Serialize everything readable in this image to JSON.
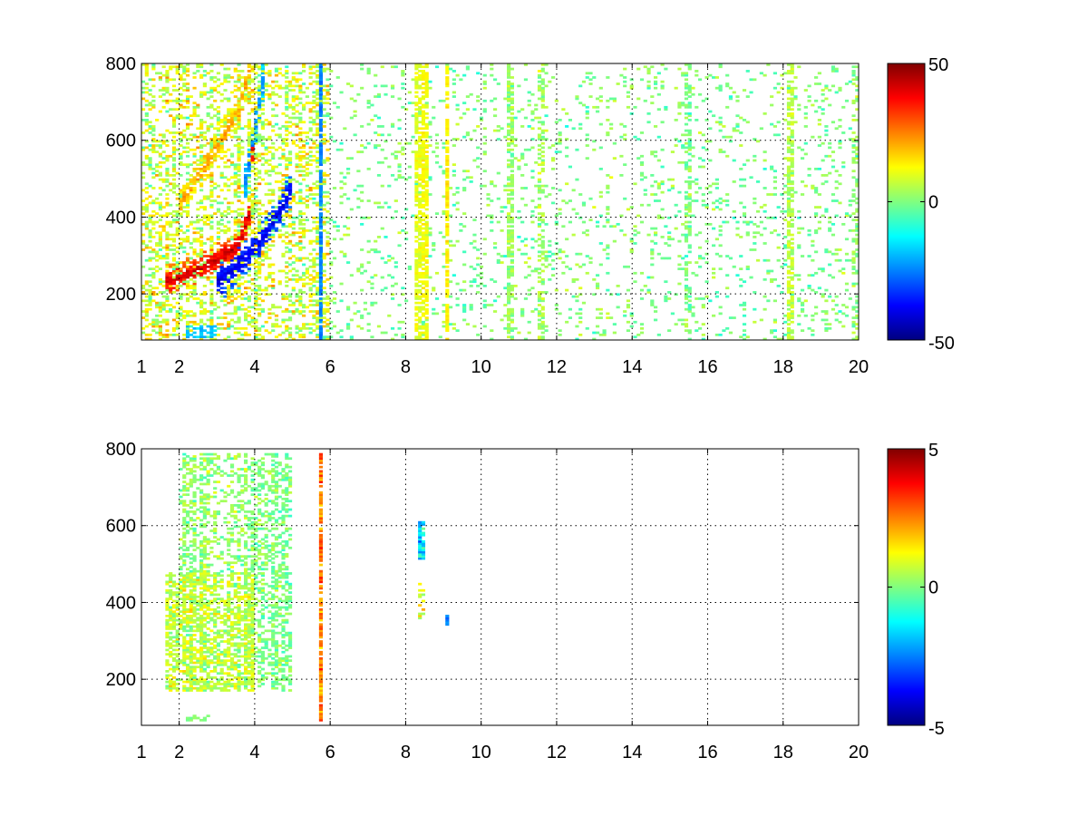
{
  "chart_data": [
    {
      "type": "heatmap",
      "title": "",
      "xlabel": "",
      "ylabel": "",
      "xlim": [
        1,
        20
      ],
      "ylim": [
        80,
        800
      ],
      "grid": true,
      "grid_style": "dotted",
      "colormap": "jet",
      "x_ticks": [
        {
          "value": 1,
          "label": "1"
        },
        {
          "value": 2,
          "label": "2"
        },
        {
          "value": 4,
          "label": "4"
        },
        {
          "value": 6,
          "label": "6"
        },
        {
          "value": 8,
          "label": "8"
        },
        {
          "value": 10,
          "label": "10"
        },
        {
          "value": 12,
          "label": "12"
        },
        {
          "value": 14,
          "label": "14"
        },
        {
          "value": 16,
          "label": "16"
        },
        {
          "value": 18,
          "label": "18"
        },
        {
          "value": 20,
          "label": "20"
        }
      ],
      "y_ticks": [
        {
          "value": 200,
          "label": "200"
        },
        {
          "value": 400,
          "label": "400"
        },
        {
          "value": 600,
          "label": "600"
        },
        {
          "value": 800,
          "label": "800"
        }
      ],
      "colorbar": {
        "range": [
          -50,
          50
        ],
        "ticks": [
          {
            "value": 50,
            "label": "50"
          },
          {
            "value": 0,
            "label": "0"
          },
          {
            "value": -50,
            "label": "-50"
          }
        ]
      },
      "features": [
        {
          "kind": "ridge",
          "points": [
            [
              1.6,
              230
            ],
            [
              2.4,
              260
            ],
            [
              3.0,
              290
            ],
            [
              3.6,
              330
            ],
            [
              3.9,
              420
            ],
            [
              4.0,
              800
            ]
          ],
          "value": 42,
          "width": 0.28,
          "height": 45,
          "density": 0.95
        },
        {
          "kind": "ridge",
          "points": [
            [
              2.0,
              430
            ],
            [
              2.6,
              520
            ],
            [
              3.1,
              600
            ],
            [
              3.6,
              680
            ],
            [
              3.9,
              800
            ]
          ],
          "value": 22,
          "width": 0.25,
          "height": 45,
          "density": 0.85
        },
        {
          "kind": "ridge",
          "points": [
            [
              3.0,
              230
            ],
            [
              3.5,
              270
            ],
            [
              4.1,
              330
            ],
            [
              4.7,
              420
            ],
            [
              5.0,
              480
            ]
          ],
          "value": -40,
          "width": 0.35,
          "height": 60,
          "density": 0.9
        },
        {
          "kind": "ridge",
          "points": [
            [
              3.7,
              460
            ],
            [
              4.0,
              620
            ],
            [
              4.3,
              800
            ]
          ],
          "value": -25,
          "width": 0.35,
          "height": 60,
          "density": 0.85
        },
        {
          "kind": "band",
          "x": [
            1.0,
            6.0
          ],
          "y": [
            80,
            800
          ],
          "value": 8,
          "spread": 20,
          "density": 0.42
        },
        {
          "kind": "band",
          "x": [
            2.2,
            3.0
          ],
          "y": [
            85,
            120
          ],
          "value": -18,
          "spread": 6,
          "density": 0.8
        },
        {
          "kind": "band",
          "x": [
            6.0,
            20.0
          ],
          "y": [
            80,
            800
          ],
          "value": 0,
          "spread": 12,
          "density": 0.1
        },
        {
          "kind": "column",
          "x": 5.75,
          "y": [
            80,
            800
          ],
          "value": -25,
          "spread": 6,
          "density": 0.9
        },
        {
          "kind": "column",
          "x": 8.3,
          "y": [
            80,
            800
          ],
          "value": 10,
          "spread": 6,
          "density": 0.7
        },
        {
          "kind": "column",
          "x": 8.5,
          "y": [
            80,
            800
          ],
          "value": 12,
          "spread": 6,
          "density": 0.75
        },
        {
          "kind": "column",
          "x": 9.1,
          "y": [
            80,
            800
          ],
          "value": 14,
          "spread": 5,
          "density": 0.75
        },
        {
          "kind": "column",
          "x": 10.8,
          "y": [
            80,
            800
          ],
          "value": 3,
          "spread": 10,
          "density": 0.6
        },
        {
          "kind": "column",
          "x": 11.6,
          "y": [
            80,
            800
          ],
          "value": 4,
          "spread": 10,
          "density": 0.45
        },
        {
          "kind": "column",
          "x": 15.5,
          "y": [
            80,
            800
          ],
          "value": 0,
          "spread": 10,
          "density": 0.45
        },
        {
          "kind": "column",
          "x": 18.2,
          "y": [
            80,
            800
          ],
          "value": 6,
          "spread": 8,
          "density": 0.65
        },
        {
          "kind": "column",
          "x": 19.9,
          "y": [
            80,
            800
          ],
          "value": 2,
          "spread": 10,
          "density": 0.35
        }
      ]
    },
    {
      "type": "heatmap",
      "title": "",
      "xlabel": "",
      "ylabel": "",
      "xlim": [
        1,
        20
      ],
      "ylim": [
        80,
        800
      ],
      "grid": true,
      "grid_style": "dotted",
      "colormap": "jet",
      "x_ticks": [
        {
          "value": 1,
          "label": "1"
        },
        {
          "value": 2,
          "label": "2"
        },
        {
          "value": 4,
          "label": "4"
        },
        {
          "value": 6,
          "label": "6"
        },
        {
          "value": 8,
          "label": "8"
        },
        {
          "value": 10,
          "label": "10"
        },
        {
          "value": 12,
          "label": "12"
        },
        {
          "value": 14,
          "label": "14"
        },
        {
          "value": 16,
          "label": "16"
        },
        {
          "value": 18,
          "label": "18"
        },
        {
          "value": 20,
          "label": "20"
        }
      ],
      "y_ticks": [
        {
          "value": 200,
          "label": "200"
        },
        {
          "value": 400,
          "label": "400"
        },
        {
          "value": 600,
          "label": "600"
        },
        {
          "value": 800,
          "label": "800"
        }
      ],
      "colorbar": {
        "range": [
          -5,
          5
        ],
        "ticks": [
          {
            "value": 5,
            "label": "5"
          },
          {
            "value": 0,
            "label": "0"
          },
          {
            "value": -5,
            "label": "-5"
          }
        ]
      },
      "features": [
        {
          "kind": "band",
          "x": [
            1.6,
            4.0
          ],
          "y": [
            170,
            480
          ],
          "value": 0.6,
          "spread": 1.4,
          "density": 0.7
        },
        {
          "kind": "band",
          "x": [
            2.0,
            3.8
          ],
          "y": [
            480,
            790
          ],
          "value": 0.2,
          "spread": 1.2,
          "density": 0.45
        },
        {
          "kind": "band",
          "x": [
            3.8,
            5.0
          ],
          "y": [
            170,
            790
          ],
          "value": 0.0,
          "spread": 1.1,
          "density": 0.45
        },
        {
          "kind": "band",
          "x": [
            2.2,
            2.9
          ],
          "y": [
            90,
            110
          ],
          "value": 0.0,
          "spread": 0.5,
          "density": 0.7
        },
        {
          "kind": "column",
          "x": 5.75,
          "y": [
            90,
            790
          ],
          "value": 2.5,
          "spread": 1.8,
          "density": 0.85
        },
        {
          "kind": "column",
          "x": 8.45,
          "y": [
            510,
            610
          ],
          "value": -1.5,
          "spread": 2.0,
          "density": 0.9
        },
        {
          "kind": "column",
          "x": 8.45,
          "y": [
            350,
            450
          ],
          "value": 1.0,
          "spread": 2.0,
          "density": 0.5
        },
        {
          "kind": "column",
          "x": 9.1,
          "y": [
            340,
            370
          ],
          "value": -2.5,
          "spread": 1.5,
          "density": 0.9
        }
      ]
    }
  ]
}
